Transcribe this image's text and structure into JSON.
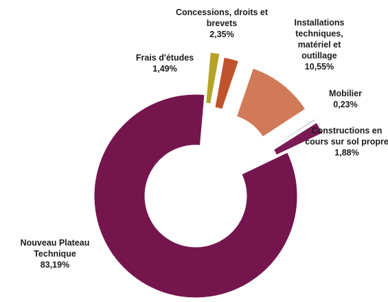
{
  "chart_data": {
    "type": "donut",
    "categories": [
      "Frais d'études",
      "Concessions, droits et brevets",
      "Installations techniques, matériel et outillage",
      "Mobilier",
      "Constructions en cours sur sol propre",
      "Nouveau Plateau Technique"
    ],
    "values": [
      1.49,
      2.35,
      10.55,
      0.23,
      1.88,
      83.19
    ],
    "value_labels": [
      "1,49%",
      "2,35%",
      "10,55%",
      "0,23%",
      "1,88%",
      "83,19%"
    ],
    "colors": [
      "#b5a32a",
      "#c0532b",
      "#d07a58",
      "#a79bc8",
      "#7a1a55",
      "#74154e"
    ]
  }
}
